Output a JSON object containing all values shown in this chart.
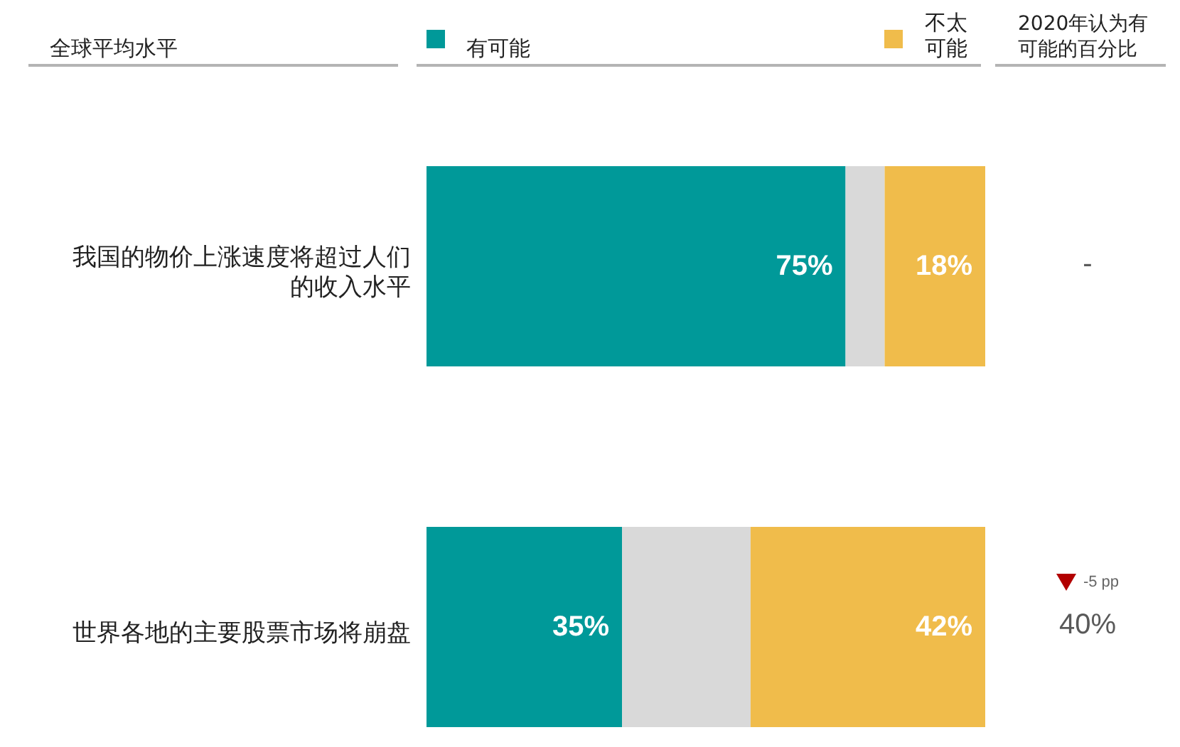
{
  "chart_data": {
    "type": "bar",
    "orientation": "horizontal",
    "stacked": true,
    "title": "全球平均水平",
    "categories": [
      "我国的物价上涨速度将超过人们的收入水平",
      "世界各地的主要股票市场将崩盘"
    ],
    "series": [
      {
        "name": "有可能",
        "color": "#009999",
        "values": [
          75,
          35
        ],
        "value_labels": [
          "75%",
          "35%"
        ]
      },
      {
        "color": "#d9d9d9",
        "values": [
          7,
          23
        ]
      },
      {
        "name": "不太可能",
        "color": "#f0bc4b",
        "values": [
          18,
          42
        ],
        "value_labels": [
          "18%",
          "42%"
        ]
      }
    ],
    "xlim": [
      0,
      100
    ],
    "tick_labels": "y",
    "legend": "top",
    "annotations": [
      "2020年认为有可能的百分比",
      "-",
      "-5 pp",
      "40%"
    ]
  }
}
